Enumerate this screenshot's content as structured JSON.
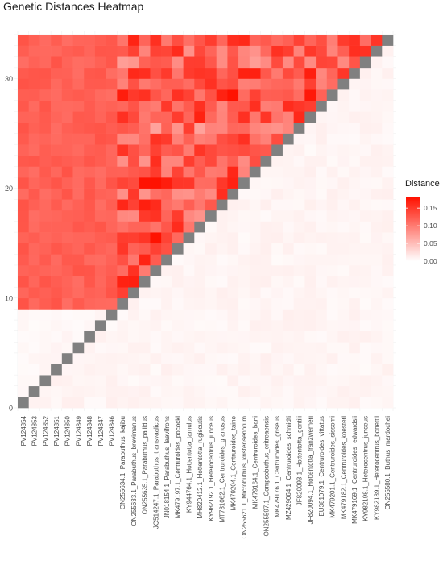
{
  "chart_data": {
    "type": "heatmap",
    "title": "Genetic Distances Heatmap",
    "xlabel": "",
    "ylabel": "",
    "labels": [
      "PV124854",
      "PV124853",
      "PV124852",
      "PV124851",
      "PV124850",
      "PV124849",
      "PV124848",
      "PV124847",
      "PV124846",
      "ON255634.1_Parabuthus_kajibu",
      "ON255633.1_Parabuthus_brevimanus",
      "ON255635.1_Parabuthus_pallidus",
      "JQ514247.1_Parabuthus_transvaalicus",
      "JN018154.1_Parabuthus_laevifrons",
      "MK479197.1_Centruroides_pococki",
      "KY944764.1_Hottentotta_tamulus",
      "MH820412.1_Hottentotta_rugiscutis",
      "KY982192.1_Heterocentrus_junceus",
      "MT731062.1_Centruroides_granosus",
      "MK479204.1_Centruroides_taino",
      "ON255621.1_Microbuthus_kristensenorum",
      "MK479164.1_Centruroides_bani",
      "ON255597.1_Compsobuthus_eritreaensis",
      "MK479176.1_Centruroides_griseus",
      "MZ429064.1_Centruroides_schmidti",
      "JF820093.1_Hottentotta_gentili",
      "JF820094.1_Hottentotta_franzwerneri",
      "EU381079.1_Centruroides_vittatus",
      "MK479201.1_Centruroides_sissomi",
      "MK479182.1_Centruroides_koesteri",
      "MK479169.1_Centruroides_edwardsii",
      "KY982198.1_Heterocentrus_junceus",
      "KY982189.1_Heterocentrus_bonettii",
      "ON255580.1_Buthus_mardochei"
    ],
    "y_ticks": [
      0,
      10,
      20,
      30
    ],
    "legend": {
      "title": "Distance",
      "ticks": [
        "0.15",
        "0.10",
        "0.05",
        "0.00"
      ],
      "tick_values": [
        0.15,
        0.1,
        0.05,
        0.0
      ],
      "range": [
        0,
        0.18
      ],
      "colors": [
        "#ffffff",
        "#ff1100"
      ]
    },
    "diagonal_color": "#808080",
    "values_note_matrix": "upper triangle shown; matrix rows indexed by y position",
    "matrix": {
      "clusterA_internal": 0.003,
      "clusterA_vs_rest": 0.12,
      "rest_internal_row_means": [
        0.13,
        0.12,
        0.14,
        0.12,
        0.13,
        0.12,
        0.14,
        0.13,
        0.12,
        0.13,
        0.12,
        0.14,
        0.13,
        0.12,
        0.13,
        0.12,
        0.11,
        0.13,
        0.12,
        0.14,
        0.12,
        0.13,
        0.11,
        0.12,
        0.13
      ]
    }
  }
}
